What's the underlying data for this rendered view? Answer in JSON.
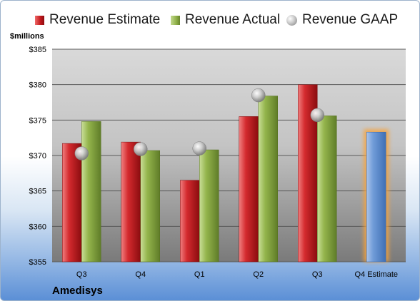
{
  "chart_data": {
    "type": "bar",
    "categories": [
      "Q3",
      "Q4",
      "Q1",
      "Q2",
      "Q3",
      "Q4 Estimate"
    ],
    "series": [
      {
        "name": "Revenue Estimate",
        "values": [
          371.7,
          371.9,
          366.5,
          375.5,
          380.0,
          373.3
        ],
        "color": "#c0171b",
        "highlight_color": "#4f81bd"
      },
      {
        "name": "Revenue Actual",
        "values": [
          374.8,
          370.7,
          370.8,
          378.4,
          375.6,
          null
        ],
        "color": "#8fb048"
      },
      {
        "name": "Revenue GAAP",
        "values": [
          370.3,
          370.9,
          371.0,
          378.5,
          375.7,
          null
        ],
        "color": "#bfbfbf"
      }
    ],
    "title": "",
    "company": "Amedisys",
    "ylabel": "$millions",
    "ylim": [
      355,
      385
    ],
    "yticks": [
      355,
      360,
      365,
      370,
      375,
      380,
      385
    ],
    "ytick_labels": [
      "$355",
      "$360",
      "$365",
      "$370",
      "$375",
      "$380",
      "$385"
    ],
    "grid": true,
    "legend": "top"
  }
}
